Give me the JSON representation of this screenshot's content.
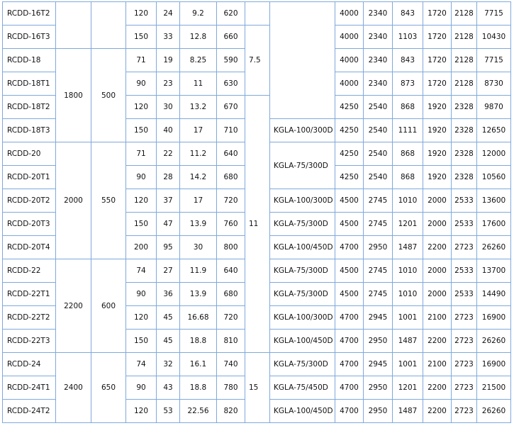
{
  "table": {
    "rows": [
      [
        "RCDD-16T2",
        "",
        "",
        "120",
        "24",
        "9.2",
        "620",
        "",
        "",
        "4000",
        "2340",
        "843",
        "1720",
        "2128",
        "7715"
      ],
      [
        "RCDD-16T3",
        null,
        null,
        "150",
        "33",
        "12.8",
        "660",
        "7.5",
        null,
        "4000",
        "2340",
        "1103",
        "1720",
        "2128",
        "10430"
      ],
      [
        "RCDD-18",
        "1800",
        "500",
        "71",
        "19",
        "8.25",
        "590",
        null,
        null,
        "4000",
        "2340",
        "843",
        "1720",
        "2128",
        "7715"
      ],
      [
        "RCDD-18T1",
        null,
        null,
        "90",
        "23",
        "11",
        "630",
        null,
        null,
        "4000",
        "2340",
        "873",
        "1720",
        "2128",
        "8730"
      ],
      [
        "RCDD-18T2",
        null,
        null,
        "120",
        "30",
        "13.2",
        "670",
        "11",
        null,
        "4250",
        "2540",
        "868",
        "1920",
        "2328",
        "9870"
      ],
      [
        "RCDD-18T3",
        null,
        null,
        "150",
        "40",
        "17",
        "710",
        null,
        "KGLA-100/300D",
        "4250",
        "2540",
        "1111",
        "1920",
        "2328",
        "12650"
      ],
      [
        "RCDD-20",
        "2000",
        "550",
        "71",
        "22",
        "11.2",
        "640",
        null,
        "KGLA-75/300D",
        "4250",
        "2540",
        "868",
        "1920",
        "2328",
        "12000"
      ],
      [
        "RCDD-20T1",
        null,
        null,
        "90",
        "28",
        "14.2",
        "680",
        null,
        null,
        "4250",
        "2540",
        "868",
        "1920",
        "2328",
        "10560"
      ],
      [
        "RCDD-20T2",
        null,
        null,
        "120",
        "37",
        "17",
        "720",
        null,
        "KGLA-100/300D",
        "4500",
        "2745",
        "1010",
        "2000",
        "2533",
        "13600"
      ],
      [
        "RCDD-20T3",
        null,
        null,
        "150",
        "47",
        "13.9",
        "760",
        null,
        "KGLA-75/300D",
        "4500",
        "2745",
        "1201",
        "2000",
        "2533",
        "17600"
      ],
      [
        "RCDD-20T4",
        null,
        null,
        "200",
        "95",
        "30",
        "800",
        null,
        "KGLA-100/450D",
        "4700",
        "2950",
        "1487",
        "2200",
        "2723",
        "26260"
      ],
      [
        "RCDD-22",
        "2200",
        "600",
        "74",
        "27",
        "11.9",
        "640",
        null,
        "KGLA-75/300D",
        "4500",
        "2745",
        "1010",
        "2000",
        "2533",
        "13700"
      ],
      [
        "RCDD-22T1",
        null,
        null,
        "90",
        "36",
        "13.9",
        "680",
        null,
        "KGLA-75/300D",
        "4500",
        "2745",
        "1010",
        "2000",
        "2533",
        "14490"
      ],
      [
        "RCDD-22T2",
        null,
        null,
        "120",
        "45",
        "16.68",
        "720",
        null,
        "KGLA-100/300D",
        "4700",
        "2945",
        "1001",
        "2100",
        "2723",
        "16900"
      ],
      [
        "RCDD-22T3",
        null,
        null,
        "150",
        "45",
        "18.8",
        "810",
        null,
        "KGLA-100/450D",
        "4700",
        "2950",
        "1487",
        "2200",
        "2723",
        "26260"
      ],
      [
        "RCDD-24",
        "2400",
        "650",
        "74",
        "32",
        "16.1",
        "740",
        "15",
        "KGLA-75/300D",
        "4700",
        "2945",
        "1001",
        "2100",
        "2723",
        "16900"
      ],
      [
        "RCDD-24T1",
        null,
        null,
        "90",
        "43",
        "18.8",
        "780",
        null,
        "KGLA-75/450D",
        "4700",
        "2950",
        "1201",
        "2200",
        "2723",
        "21500"
      ],
      [
        "RCDD-24T2",
        null,
        null,
        "120",
        "53",
        "22.56",
        "820",
        null,
        "KGLA-100/450D",
        "4700",
        "2950",
        "1487",
        "2200",
        "2723",
        "26260"
      ]
    ]
  }
}
